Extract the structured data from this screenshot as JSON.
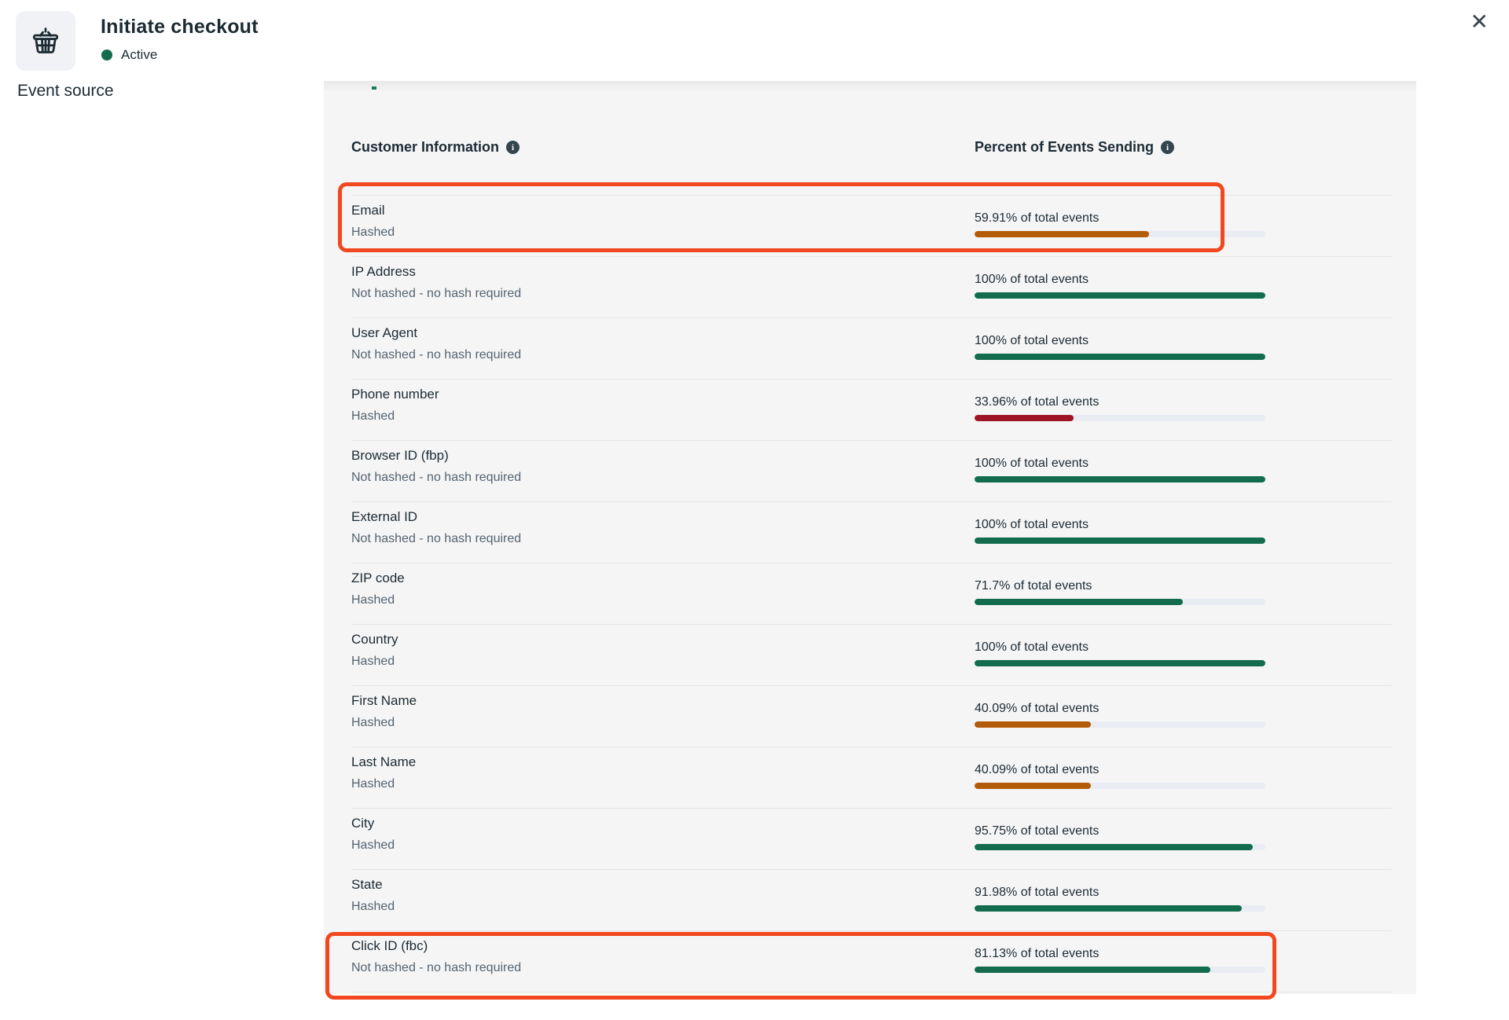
{
  "modal": {
    "title": "Initiate checkout",
    "status_label": "Active",
    "close_icon": "✕",
    "event_icon": "basket-icon"
  },
  "sidebar": {
    "event_source_label": "Event source"
  },
  "table": {
    "customer_info_header": "Customer Information",
    "percent_header": "Percent of Events Sending",
    "rows": [
      {
        "label": "Email",
        "sublabel": "Hashed",
        "percent": 59.91,
        "percent_label": "59.91% of total events",
        "color": "orange",
        "highlighted": true
      },
      {
        "label": "IP Address",
        "sublabel": "Not hashed - no hash required",
        "percent": 100,
        "percent_label": "100% of total events",
        "color": "green",
        "highlighted": false
      },
      {
        "label": "User Agent",
        "sublabel": "Not hashed - no hash required",
        "percent": 100,
        "percent_label": "100% of total events",
        "color": "green",
        "highlighted": false
      },
      {
        "label": "Phone number",
        "sublabel": "Hashed",
        "percent": 33.96,
        "percent_label": "33.96% of total events",
        "color": "red",
        "highlighted": false
      },
      {
        "label": "Browser ID (fbp)",
        "sublabel": "Not hashed - no hash required",
        "percent": 100,
        "percent_label": "100% of total events",
        "color": "green",
        "highlighted": false
      },
      {
        "label": "External ID",
        "sublabel": "Not hashed - no hash required",
        "percent": 100,
        "percent_label": "100% of total events",
        "color": "green",
        "highlighted": false
      },
      {
        "label": "ZIP code",
        "sublabel": "Hashed",
        "percent": 71.7,
        "percent_label": "71.7% of total events",
        "color": "green",
        "highlighted": false
      },
      {
        "label": "Country",
        "sublabel": "Hashed",
        "percent": 100,
        "percent_label": "100% of total events",
        "color": "green",
        "highlighted": false
      },
      {
        "label": "First Name",
        "sublabel": "Hashed",
        "percent": 40.09,
        "percent_label": "40.09% of total events",
        "color": "orange",
        "highlighted": false
      },
      {
        "label": "Last Name",
        "sublabel": "Hashed",
        "percent": 40.09,
        "percent_label": "40.09% of total events",
        "color": "orange",
        "highlighted": false
      },
      {
        "label": "City",
        "sublabel": "Hashed",
        "percent": 95.75,
        "percent_label": "95.75% of total events",
        "color": "green",
        "highlighted": false
      },
      {
        "label": "State",
        "sublabel": "Hashed",
        "percent": 91.98,
        "percent_label": "91.98% of total events",
        "color": "green",
        "highlighted": false
      },
      {
        "label": "Click ID (fbc)",
        "sublabel": "Not hashed - no hash required",
        "percent": 81.13,
        "percent_label": "81.13% of total events",
        "color": "green",
        "highlighted": true
      }
    ]
  },
  "colors": {
    "green": "#126c4d",
    "orange": "#b35b08",
    "red": "#9e1626",
    "highlight": "#f1481f",
    "track": "#e9ecf3",
    "status_dot": "#136c4e",
    "speck": "#1c7a53"
  }
}
